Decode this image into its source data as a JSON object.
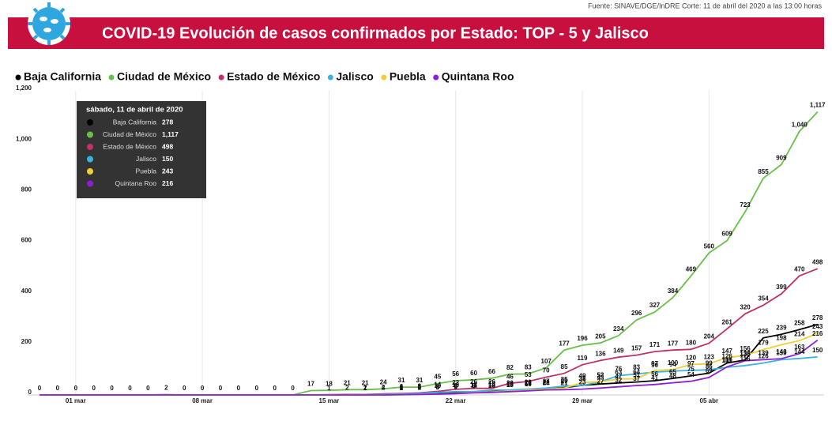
{
  "chart_data": {
    "type": "line",
    "title": "COVID-19 Evolución de casos confirmados por Estado: TOP - 5 y Jalisco",
    "source": "Fuente: SINAVE/DGE/InDRE Corte: 11 de abril del 2020 a las 13:00 horas",
    "categories": [
      null,
      null,
      "01 mar",
      null,
      null,
      null,
      null,
      null,
      null,
      "08 mar",
      null,
      null,
      null,
      null,
      null,
      null,
      "15 mar",
      null,
      null,
      null,
      null,
      null,
      null,
      "22 mar",
      null,
      null,
      null,
      null,
      null,
      null,
      "29 mar",
      null,
      null,
      null,
      null,
      null,
      null,
      "05 abr",
      null,
      null,
      null,
      null,
      null,
      null
    ],
    "series": [
      {
        "name": "Baja California",
        "color": "#000000",
        "values": [
          0,
          0,
          0,
          0,
          0,
          0,
          0,
          0,
          0,
          0,
          0,
          0,
          0,
          0,
          0,
          0,
          0,
          0,
          0,
          0,
          2,
          3,
          5,
          9,
          11,
          14,
          16,
          22,
          22,
          29,
          38,
          43,
          47,
          51,
          56,
          65,
          75,
          86,
          126,
          138,
          225,
          239,
          258,
          278
        ]
      },
      {
        "name": "Ciudad de México",
        "color": "#6abf4b",
        "values": [
          0,
          0,
          0,
          0,
          0,
          0,
          0,
          2,
          0,
          0,
          0,
          0,
          0,
          0,
          0,
          17,
          18,
          21,
          21,
          24,
          31,
          31,
          45,
          56,
          60,
          66,
          82,
          83,
          107,
          177,
          196,
          205,
          234,
          296,
          327,
          384,
          469,
          560,
          609,
          723,
          855,
          909,
          1040,
          1117
        ],
        "value_labels": [
          "0",
          "0",
          "0",
          "0",
          "0",
          "0",
          "0",
          "2",
          "0",
          "0",
          "0",
          "0",
          "0",
          "0",
          "0",
          "17",
          "18",
          "21",
          "21",
          "24",
          "31",
          "31",
          "45",
          "56",
          "60",
          "66",
          "82",
          "83",
          "107",
          "177",
          "196",
          "205",
          "234",
          "296",
          "327",
          "384",
          "469",
          "560",
          "609",
          "723",
          "855",
          "909",
          "1,040",
          "1,117"
        ]
      },
      {
        "name": "Estado de México",
        "color": "#c0306a",
        "values": [
          0,
          0,
          0,
          0,
          0,
          0,
          0,
          0,
          0,
          0,
          0,
          0,
          0,
          0,
          0,
          0,
          1,
          2,
          2,
          4,
          6,
          8,
          14,
          22,
          26,
          26,
          46,
          53,
          70,
          85,
          119,
          136,
          149,
          157,
          171,
          177,
          180,
          204,
          261,
          320,
          354,
          399,
          470,
          498
        ]
      },
      {
        "name": "Jalisco",
        "color": "#3bb3e0",
        "values": [
          0,
          0,
          0,
          0,
          0,
          0,
          0,
          0,
          0,
          0,
          0,
          0,
          0,
          0,
          0,
          0,
          0,
          0,
          1,
          2,
          4,
          6,
          10,
          13,
          13,
          19,
          20,
          23,
          27,
          35,
          37,
          52,
          76,
          83,
          90,
          94,
          97,
          99,
          109,
          116,
          126,
          139,
          144,
          150
        ]
      },
      {
        "name": "Puebla",
        "color": "#f2cf3a",
        "values": [
          0,
          0,
          0,
          0,
          0,
          0,
          0,
          0,
          0,
          0,
          0,
          0,
          0,
          0,
          0,
          0,
          0,
          0,
          0,
          0,
          1,
          2,
          3,
          6,
          9,
          12,
          15,
          19,
          22,
          27,
          49,
          52,
          63,
          64,
          97,
          100,
          120,
          123,
          147,
          156,
          179,
          198,
          214,
          243
        ]
      },
      {
        "name": "Quintana Roo",
        "color": "#8a1fd6",
        "values": [
          0,
          0,
          0,
          0,
          0,
          0,
          0,
          0,
          0,
          0,
          0,
          0,
          0,
          0,
          0,
          0,
          0,
          0,
          0,
          0,
          1,
          2,
          3,
          5,
          8,
          10,
          13,
          16,
          20,
          21,
          23,
          27,
          32,
          37,
          41,
          48,
          54,
          69,
          111,
          135,
          139,
          143,
          163,
          216
        ]
      }
    ],
    "ylim": [
      0,
      1200
    ],
    "yticks": [
      0,
      200,
      400,
      600,
      800,
      {
        "value": 1000,
        "label": "1,000"
      },
      {
        "value": 1200,
        "label": "1,200"
      }
    ],
    "grid": true,
    "tooltip": {
      "title": "sábado, 11 de abril de 2020",
      "value_labels": [
        "278",
        "1,117",
        "498",
        "150",
        "243",
        "216"
      ]
    }
  }
}
